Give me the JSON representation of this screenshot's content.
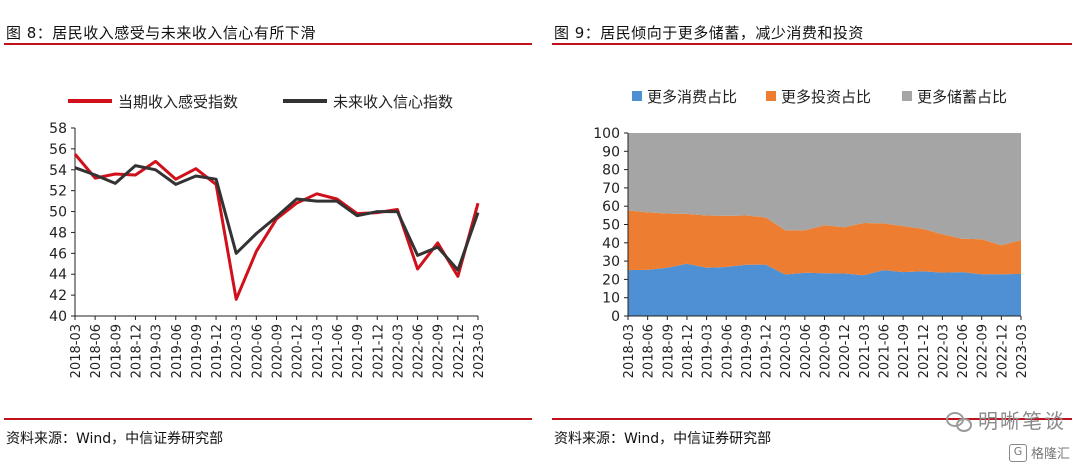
{
  "left": {
    "title": "图 8：居民收入感受与未来收入信心有所下滑",
    "source": "资料来源：Wind，中信证券研究部"
  },
  "right": {
    "title": "图 9：居民倾向于更多储蓄，减少消费和投资",
    "source": "资料来源：Wind，中信证券研究部"
  },
  "watermark": {
    "text": "明晰笔谈",
    "icon": "wechat-icon"
  },
  "badge": {
    "text": "格隆汇",
    "icon": "G"
  },
  "chart_data": [
    {
      "type": "line",
      "title": "",
      "xlabel": "",
      "ylabel": "",
      "ylim": [
        40,
        58
      ],
      "yticks": [
        40,
        42,
        44,
        46,
        48,
        50,
        52,
        54,
        56,
        58
      ],
      "legend_position": "top",
      "x": [
        "2018-03",
        "2018-06",
        "2018-09",
        "2018-12",
        "2019-03",
        "2019-06",
        "2019-09",
        "2019-12",
        "2020-03",
        "2020-06",
        "2020-09",
        "2020-12",
        "2021-03",
        "2021-06",
        "2021-09",
        "2021-12",
        "2022-03",
        "2022-06",
        "2022-09",
        "2022-12",
        "2023-03"
      ],
      "series": [
        {
          "name": "当期收入感受指数",
          "color": "#d0101b",
          "values": [
            55.5,
            53.2,
            53.6,
            53.5,
            54.8,
            53.1,
            54.1,
            52.6,
            41.6,
            46.2,
            49.3,
            50.8,
            51.7,
            51.2,
            49.8,
            49.9,
            50.2,
            44.5,
            47.0,
            43.8,
            50.8
          ]
        },
        {
          "name": "未来收入信心指数",
          "color": "#333333",
          "values": [
            54.2,
            53.5,
            52.7,
            54.4,
            54.0,
            52.6,
            53.4,
            53.1,
            46.0,
            47.9,
            49.5,
            51.2,
            51.0,
            51.0,
            49.6,
            50.0,
            50.0,
            45.8,
            46.6,
            44.4,
            49.9
          ]
        }
      ]
    },
    {
      "type": "area",
      "stacked": true,
      "title": "",
      "xlabel": "",
      "ylabel": "",
      "ylim": [
        0,
        100
      ],
      "yticks": [
        0,
        10,
        20,
        30,
        40,
        50,
        60,
        70,
        80,
        90,
        100
      ],
      "legend_position": "top",
      "x": [
        "2018-03",
        "2018-06",
        "2018-09",
        "2018-12",
        "2019-03",
        "2019-06",
        "2019-09",
        "2019-12",
        "2020-03",
        "2020-06",
        "2020-09",
        "2020-12",
        "2021-03",
        "2021-06",
        "2021-09",
        "2021-12",
        "2022-03",
        "2022-06",
        "2022-09",
        "2022-12",
        "2023-03"
      ],
      "series": [
        {
          "name": "更多消费占比",
          "color": "#4f8fd3",
          "values": [
            25.1,
            25.2,
            26.4,
            28.5,
            26.4,
            26.8,
            28.0,
            28.1,
            22.7,
            23.6,
            23.4,
            23.2,
            22.3,
            25.1,
            24.0,
            24.4,
            23.7,
            24.0,
            22.8,
            22.8,
            23.0
          ]
        },
        {
          "name": "更多投资占比",
          "color": "#ed7d31",
          "values": [
            32.6,
            31.4,
            29.6,
            27.3,
            28.5,
            27.9,
            26.9,
            25.8,
            24.2,
            23.2,
            26.2,
            25.3,
            28.5,
            25.5,
            25.1,
            23.2,
            21.0,
            18.2,
            19.1,
            15.8,
            18.5
          ]
        },
        {
          "name": "更多储蓄占比",
          "color": "#a5a5a5",
          "values": [
            42.3,
            43.4,
            44.0,
            44.2,
            45.1,
            45.3,
            45.1,
            46.1,
            53.1,
            53.2,
            50.4,
            51.5,
            49.2,
            49.4,
            50.9,
            52.4,
            55.3,
            57.8,
            58.1,
            61.4,
            58.5
          ]
        }
      ]
    }
  ]
}
